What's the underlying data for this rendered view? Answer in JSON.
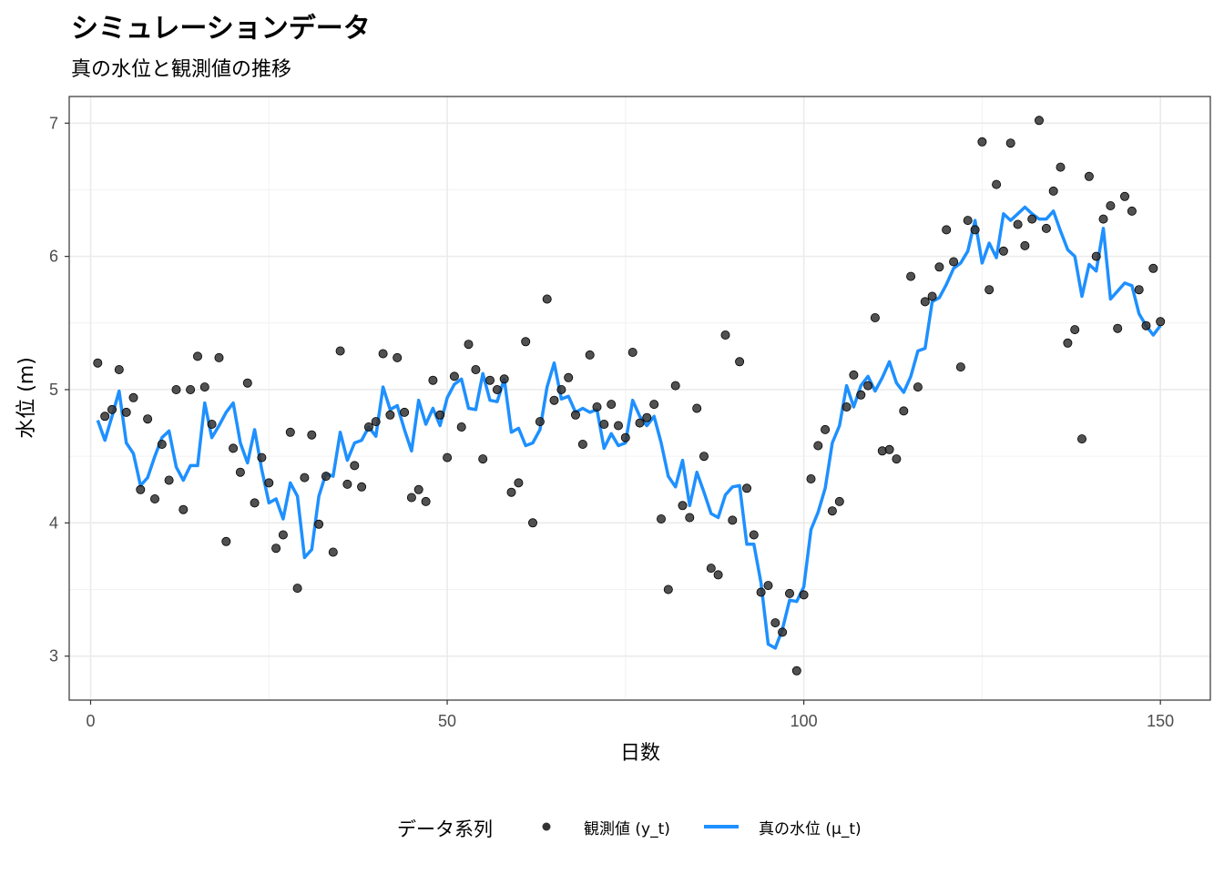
{
  "chart_data": {
    "type": "line",
    "title": "シミュレーションデータ",
    "subtitle": "真の水位と観測値の推移",
    "xlabel": "日数",
    "ylabel": "水位 (m)",
    "xlim": [
      -3,
      157
    ],
    "ylim": [
      2.67,
      7.2
    ],
    "x_ticks": [
      0,
      50,
      100,
      150
    ],
    "x_tick_labels": [
      "0",
      "50",
      "100",
      "150"
    ],
    "y_ticks": [
      3,
      4,
      5,
      6,
      7
    ],
    "y_tick_labels": [
      "3",
      "4",
      "5",
      "6",
      "7"
    ],
    "grid": true,
    "legend": {
      "position": "bottom",
      "title": "データ系列",
      "entries": [
        {
          "label": "観測値 (y_t)",
          "type": "point",
          "color": "#333333"
        },
        {
          "label": "真の水位 (μ_t)",
          "type": "line",
          "color": "#1E90FF"
        }
      ]
    },
    "colors": {
      "points": "#333333",
      "line": "#1E90FF"
    },
    "series": [
      {
        "name": "観測値 (y_t)",
        "type": "scatter",
        "x": [
          1,
          2,
          3,
          4,
          5,
          6,
          7,
          8,
          9,
          10,
          11,
          12,
          13,
          14,
          15,
          16,
          17,
          18,
          19,
          20,
          21,
          22,
          23,
          24,
          25,
          26,
          27,
          28,
          29,
          30,
          31,
          32,
          33,
          34,
          35,
          36,
          37,
          38,
          39,
          40,
          41,
          42,
          43,
          44,
          45,
          46,
          47,
          48,
          49,
          50,
          51,
          52,
          53,
          54,
          55,
          56,
          57,
          58,
          59,
          60,
          61,
          62,
          63,
          64,
          65,
          66,
          67,
          68,
          69,
          70,
          71,
          72,
          73,
          74,
          75,
          76,
          77,
          78,
          79,
          80,
          81,
          82,
          83,
          84,
          85,
          86,
          87,
          88,
          89,
          90,
          91,
          92,
          93,
          94,
          95,
          96,
          97,
          98,
          99,
          100,
          101,
          102,
          103,
          104,
          105,
          106,
          107,
          108,
          109,
          110,
          111,
          112,
          113,
          114,
          115,
          116,
          117,
          118,
          119,
          120,
          121,
          122,
          123,
          124,
          125,
          126,
          127,
          128,
          129,
          130,
          131,
          132,
          133,
          134,
          135,
          136,
          137,
          138,
          139,
          140,
          141,
          142,
          143,
          144,
          145,
          146,
          147,
          148,
          149,
          150
        ],
        "y": [
          5.2,
          4.8,
          4.85,
          5.15,
          4.83,
          4.94,
          4.25,
          4.78,
          4.18,
          4.59,
          4.32,
          5.0,
          4.1,
          5.0,
          5.25,
          5.02,
          4.74,
          5.24,
          3.86,
          4.56,
          4.38,
          5.05,
          4.15,
          4.49,
          4.3,
          3.81,
          3.91,
          4.68,
          3.51,
          4.34,
          4.66,
          3.99,
          4.35,
          3.78,
          5.29,
          4.29,
          4.43,
          4.27,
          4.72,
          4.76,
          5.27,
          4.81,
          5.24,
          4.83,
          4.19,
          4.25,
          4.16,
          5.07,
          4.81,
          4.49,
          5.1,
          4.72,
          5.34,
          5.15,
          4.48,
          5.07,
          5.0,
          5.08,
          4.23,
          4.3,
          5.36,
          4.0,
          4.76,
          5.68,
          4.92,
          5.0,
          5.09,
          4.81,
          4.59,
          5.26,
          4.87,
          4.74,
          4.89,
          4.73,
          4.64,
          5.28,
          4.75,
          4.79,
          4.89,
          4.03,
          3.5,
          5.03,
          4.13,
          4.04,
          4.86,
          4.5,
          3.66,
          3.61,
          5.41,
          4.02,
          5.21,
          4.26,
          3.91,
          3.48,
          3.53,
          3.25,
          3.18,
          3.47,
          2.89,
          3.46,
          4.33,
          4.58,
          4.7,
          4.09,
          4.16,
          4.87,
          5.11,
          4.96,
          5.03,
          5.54,
          4.54,
          4.55,
          4.48,
          4.84,
          5.85,
          5.02,
          5.66,
          5.7,
          5.92,
          6.2,
          5.96,
          5.17,
          6.27,
          6.2,
          6.86,
          5.75,
          6.54,
          6.04,
          6.85,
          6.24,
          6.08,
          6.28,
          7.02,
          6.21,
          6.49,
          6.67,
          5.35,
          5.45,
          4.63,
          6.6,
          6.0,
          6.28,
          6.38,
          5.46,
          6.45,
          6.34,
          5.75,
          5.48,
          5.91,
          5.51
        ]
      },
      {
        "name": "真の水位 (μ_t)",
        "type": "line",
        "x": [
          1,
          2,
          3,
          4,
          5,
          6,
          7,
          8,
          9,
          10,
          11,
          12,
          13,
          14,
          15,
          16,
          17,
          18,
          19,
          20,
          21,
          22,
          23,
          24,
          25,
          26,
          27,
          28,
          29,
          30,
          31,
          32,
          33,
          34,
          35,
          36,
          37,
          38,
          39,
          40,
          41,
          42,
          43,
          44,
          45,
          46,
          47,
          48,
          49,
          50,
          51,
          52,
          53,
          54,
          55,
          56,
          57,
          58,
          59,
          60,
          61,
          62,
          63,
          64,
          65,
          66,
          67,
          68,
          69,
          70,
          71,
          72,
          73,
          74,
          75,
          76,
          77,
          78,
          79,
          80,
          81,
          82,
          83,
          84,
          85,
          86,
          87,
          88,
          89,
          90,
          91,
          92,
          93,
          94,
          95,
          96,
          97,
          98,
          99,
          100,
          101,
          102,
          103,
          104,
          105,
          106,
          107,
          108,
          109,
          110,
          111,
          112,
          113,
          114,
          115,
          116,
          117,
          118,
          119,
          120,
          121,
          122,
          123,
          124,
          125,
          126,
          127,
          128,
          129,
          130,
          131,
          132,
          133,
          134,
          135,
          136,
          137,
          138,
          139,
          140,
          141,
          142,
          143,
          144,
          145,
          146,
          147,
          148,
          149,
          150
        ],
        "y": [
          4.77,
          4.62,
          4.8,
          4.99,
          4.6,
          4.52,
          4.28,
          4.34,
          4.5,
          4.64,
          4.69,
          4.42,
          4.32,
          4.43,
          4.43,
          4.9,
          4.64,
          4.73,
          4.83,
          4.9,
          4.6,
          4.45,
          4.7,
          4.4,
          4.15,
          4.18,
          4.03,
          4.3,
          4.2,
          3.74,
          3.8,
          4.2,
          4.37,
          4.35,
          4.68,
          4.47,
          4.6,
          4.62,
          4.72,
          4.65,
          5.02,
          4.85,
          4.88,
          4.7,
          4.54,
          4.92,
          4.74,
          4.86,
          4.73,
          4.94,
          5.04,
          5.08,
          4.86,
          4.85,
          5.12,
          4.92,
          4.91,
          5.08,
          4.68,
          4.71,
          4.58,
          4.6,
          4.7,
          5.02,
          5.2,
          4.93,
          4.95,
          4.83,
          4.86,
          4.83,
          4.85,
          4.56,
          4.67,
          4.58,
          4.6,
          4.92,
          4.8,
          4.73,
          4.8,
          4.6,
          4.35,
          4.27,
          4.47,
          4.13,
          4.38,
          4.23,
          4.07,
          4.04,
          4.21,
          4.27,
          4.28,
          3.84,
          3.84,
          3.55,
          3.09,
          3.06,
          3.2,
          3.42,
          3.41,
          3.52,
          3.95,
          4.08,
          4.26,
          4.6,
          4.73,
          5.03,
          4.87,
          5.03,
          5.1,
          4.99,
          5.09,
          5.21,
          5.05,
          4.98,
          5.1,
          5.29,
          5.31,
          5.66,
          5.69,
          5.79,
          5.91,
          5.95,
          6.04,
          6.27,
          5.95,
          6.1,
          5.99,
          6.32,
          6.27,
          6.32,
          6.37,
          6.32,
          6.28,
          6.28,
          6.34,
          6.19,
          6.05,
          6.0,
          5.7,
          5.94,
          5.89,
          6.21,
          5.68,
          5.74,
          5.8,
          5.78,
          5.57,
          5.48,
          5.41,
          5.48
        ]
      }
    ]
  }
}
